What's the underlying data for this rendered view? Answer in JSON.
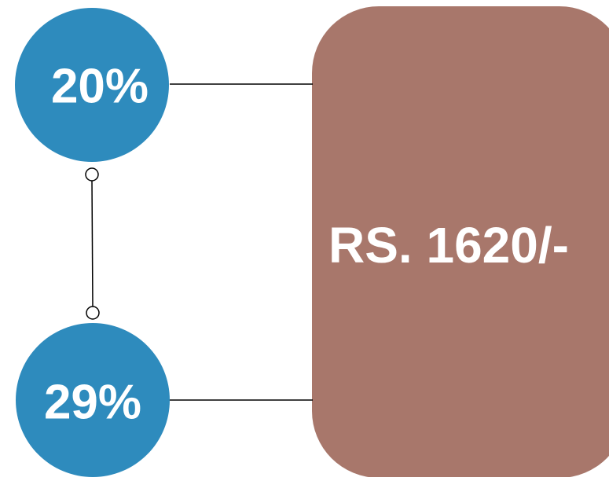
{
  "nodes": [
    {
      "label": "20%"
    },
    {
      "label": "29%"
    }
  ],
  "box": {
    "label": "RS. 1620/-"
  }
}
